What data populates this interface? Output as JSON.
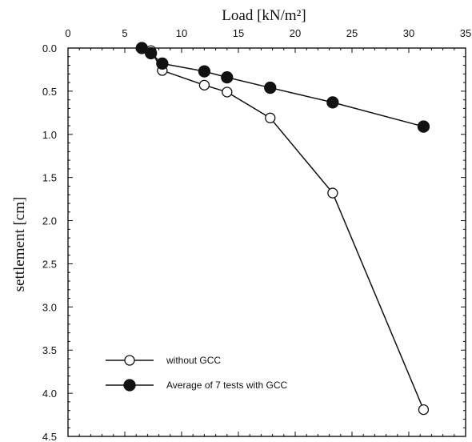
{
  "chart_data": {
    "type": "line",
    "xlabel": "Load [kN/m²]",
    "ylabel": "settlement [cm]",
    "xlim": [
      0,
      35
    ],
    "ylim": [
      0.0,
      4.5
    ],
    "x_axis_position": "top",
    "y_inverted": true,
    "grid": false,
    "legend_position": "bottom-left",
    "x_ticks": [
      0,
      5,
      10,
      15,
      20,
      25,
      30,
      35
    ],
    "y_ticks": [
      "0.0",
      "0.5",
      "1.0",
      "1.5",
      "2.0",
      "2.5",
      "3.0",
      "3.5",
      "4.0",
      "4.5"
    ],
    "series": [
      {
        "name": "without GCC",
        "marker": "open-circle",
        "color": "#111111",
        "x": [
          7.3,
          8.3,
          12.0,
          14.0,
          17.8,
          23.3,
          31.3
        ],
        "y": [
          0.03,
          0.26,
          0.43,
          0.51,
          0.81,
          1.68,
          4.19
        ]
      },
      {
        "name": "Average of 7 tests with GCC",
        "marker": "filled-circle",
        "color": "#111111",
        "x": [
          6.5,
          7.3,
          8.3,
          12.0,
          14.0,
          17.8,
          23.3,
          31.3
        ],
        "y": [
          0.0,
          0.06,
          0.18,
          0.27,
          0.34,
          0.46,
          0.63,
          0.91
        ]
      }
    ]
  }
}
